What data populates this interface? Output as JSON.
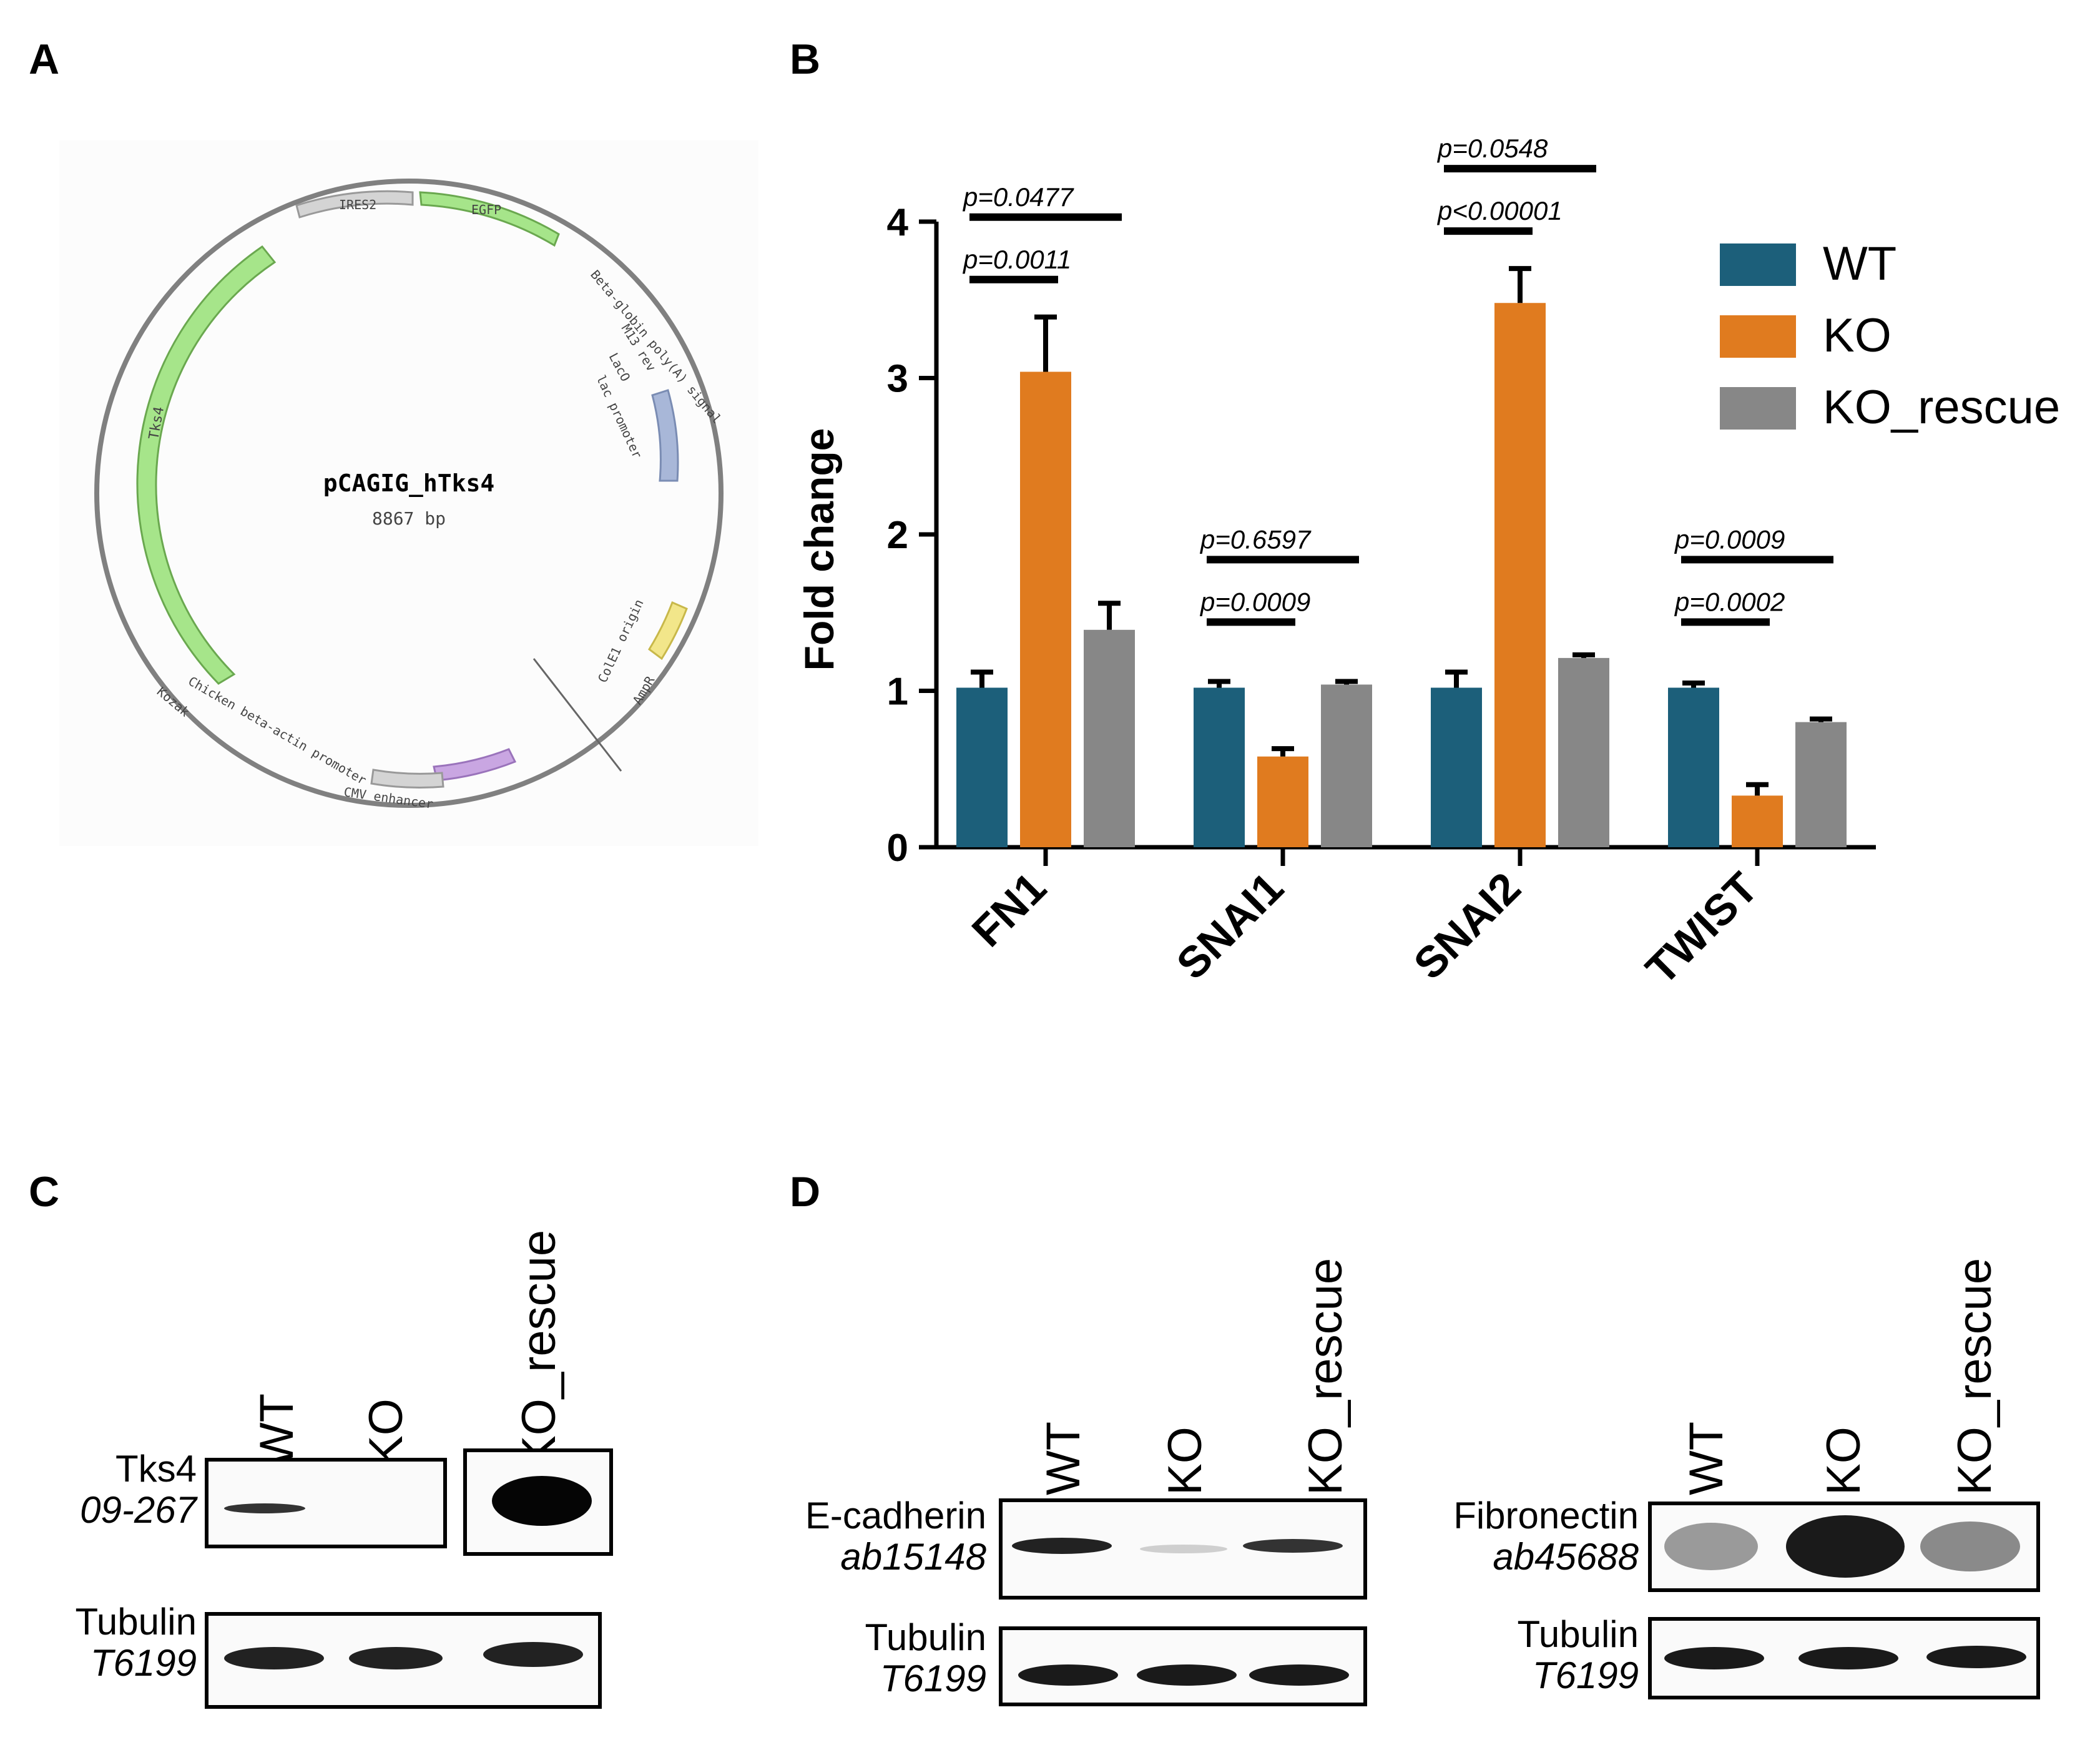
{
  "panels": {
    "a": {
      "letter": "A"
    },
    "b": {
      "letter": "B"
    },
    "c": {
      "letter": "C"
    },
    "d": {
      "letter": "D"
    }
  },
  "plasmid": {
    "name": "pCAGIG_hTks4",
    "size": "8867 bp",
    "features": {
      "ires2": "IRES2",
      "egfp": "EGFP",
      "beta_globin": "Beta-globin poly(A) signal",
      "m13": "M13 rev",
      "laco": "LacO",
      "lac_promoter": "lac promoter",
      "cole1": "ColE1 origin",
      "ampr": "AmpR",
      "cmv": "CMV enhancer",
      "chicken": "Chicken beta-actin promoter",
      "kozak": "Kozak",
      "tks4": "Tks4"
    },
    "colors": {
      "egfp": "#a6e58a",
      "tks4": "#a6e58a",
      "ires2": "#d4d4d4",
      "cole1": "#a8b7d8",
      "ampr": "#f2e68a",
      "cmv": "#c9a6e2",
      "chicken": "#d4d4d4"
    }
  },
  "chart_data": {
    "type": "bar",
    "ylabel": "Fold change",
    "ylim": [
      0,
      4
    ],
    "yticks": [
      "0",
      "1",
      "2",
      "3",
      "4"
    ],
    "categories": [
      "FN1",
      "SNAI1",
      "SNAI2",
      "TWIST"
    ],
    "series": [
      {
        "name": "WT",
        "color": "#1c5f7a",
        "values": [
          1.02,
          1.02,
          1.02,
          1.02
        ],
        "errors": [
          0.1,
          0.04,
          0.1,
          0.03
        ]
      },
      {
        "name": "KO",
        "color": "#e07b1f",
        "values": [
          3.04,
          0.58,
          3.48,
          0.33
        ],
        "errors": [
          0.35,
          0.05,
          0.22,
          0.07
        ]
      },
      {
        "name": "KO_rescue",
        "color": "#878787",
        "values": [
          1.39,
          1.04,
          1.21,
          0.8
        ],
        "errors": [
          0.17,
          0.02,
          0.02,
          0.02
        ]
      }
    ],
    "annotations": [
      {
        "text": "p=0.0477",
        "category": 0,
        "from": 0,
        "to": 2,
        "level": 1
      },
      {
        "text": "p=0.0011",
        "category": 0,
        "from": 0,
        "to": 1,
        "level": 0
      },
      {
        "text": "p=0.6597",
        "category": 1,
        "from": 0,
        "to": 2,
        "level": 1
      },
      {
        "text": "p=0.0009",
        "category": 1,
        "from": 0,
        "to": 1,
        "level": 0
      },
      {
        "text": "p=0.0548",
        "category": 2,
        "from": 0,
        "to": 2,
        "level": 1
      },
      {
        "text": "p<0.00001",
        "category": 2,
        "from": 0,
        "to": 1,
        "level": 0
      },
      {
        "text": "p=0.0009",
        "category": 3,
        "from": 0,
        "to": 2,
        "level": 1
      },
      {
        "text": "p=0.0002",
        "category": 3,
        "from": 0,
        "to": 1,
        "level": 0
      }
    ],
    "legend_position": "top-right"
  },
  "blot_c": {
    "lanes": [
      "WT",
      "KO",
      "KO_rescue"
    ],
    "tks4": {
      "name": "Tks4",
      "catalog": "09-267"
    },
    "tubulin": {
      "name": "Tubulin",
      "catalog": "T6199"
    }
  },
  "blot_d1": {
    "lanes": [
      "WT",
      "KO",
      "KO_rescue"
    ],
    "ecad": {
      "name": "E-cadherin",
      "catalog": "ab15148"
    },
    "tubulin": {
      "name": "Tubulin",
      "catalog": "T6199"
    }
  },
  "blot_d2": {
    "lanes": [
      "WT",
      "KO",
      "KO_rescue"
    ],
    "fn": {
      "name": "Fibronectin",
      "catalog": "ab45688"
    },
    "tubulin": {
      "name": "Tubulin",
      "catalog": "T6199"
    }
  }
}
